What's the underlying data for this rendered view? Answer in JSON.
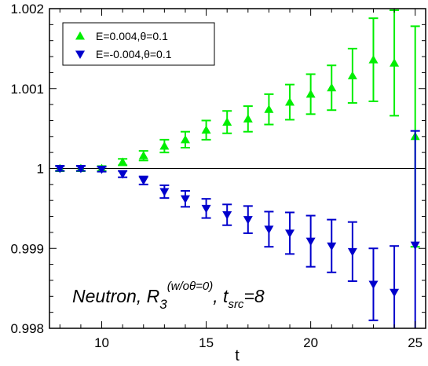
{
  "chart_data": {
    "type": "scatter",
    "title": "",
    "xlabel": "t",
    "ylabel": "",
    "xlim": [
      7.5,
      25.5
    ],
    "ylim": [
      0.998,
      1.002
    ],
    "xticks": [
      10,
      15,
      20,
      25
    ],
    "yticks": [
      0.998,
      0.999,
      1,
      1.001,
      1.002
    ],
    "ytick_labels": [
      "0.998",
      "0.999",
      "1",
      "1.001",
      "1.002"
    ],
    "reference_line": 1,
    "legend_position": "top-left",
    "annotation": {
      "main": "Neutron, R",
      "sub1": "3",
      "sup": "(w/oθ=0)",
      "mid": ", t",
      "sub2": "src",
      "tail": "=8"
    },
    "series": [
      {
        "name": "E=0.004,θ=0.1",
        "color": "#00ee00",
        "marker": "triangle-up",
        "x": [
          8,
          9,
          10,
          11,
          12,
          13,
          14,
          15,
          16,
          17,
          18,
          19,
          20,
          21,
          22,
          23,
          24,
          25
        ],
        "y": [
          1.0,
          1.0,
          1.0,
          1.00008,
          1.00016,
          1.00028,
          1.00036,
          1.00048,
          1.00058,
          1.00062,
          1.00074,
          1.00083,
          1.00093,
          1.00101,
          1.00116,
          1.00136,
          1.00132,
          1.0004
        ],
        "err": [
          3e-05,
          3e-05,
          3e-05,
          4e-05,
          6e-05,
          8e-05,
          0.0001,
          0.00012,
          0.00014,
          0.00016,
          0.00019,
          0.00022,
          0.00025,
          0.00028,
          0.00034,
          0.00052,
          0.00066,
          0.00138
        ]
      },
      {
        "name": "E=-0.004,θ=0.1",
        "color": "#0000cc",
        "marker": "triangle-down",
        "x": [
          8,
          9,
          10,
          11,
          12,
          13,
          14,
          15,
          16,
          17,
          18,
          19,
          20,
          21,
          22,
          23,
          24,
          25
        ],
        "y": [
          1.0,
          1.0,
          0.99999,
          0.99993,
          0.99985,
          0.99971,
          0.99962,
          0.9995,
          0.99942,
          0.99936,
          0.99924,
          0.99919,
          0.99909,
          0.99903,
          0.99896,
          0.99855,
          0.99845,
          0.99904
        ],
        "err": [
          3e-05,
          3e-05,
          3e-05,
          4e-05,
          5e-05,
          8e-05,
          0.0001,
          0.00012,
          0.00013,
          0.00017,
          0.00022,
          0.00026,
          0.00032,
          0.00033,
          0.00037,
          0.00045,
          0.00058,
          0.00143
        ]
      }
    ]
  }
}
